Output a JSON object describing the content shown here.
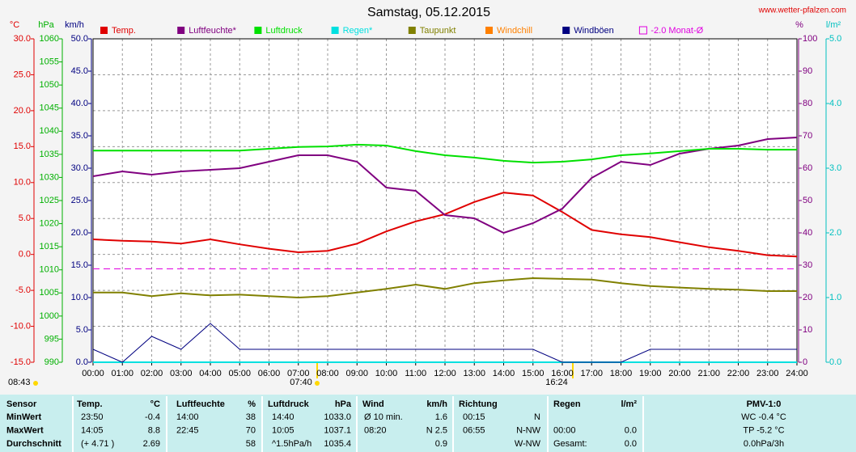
{
  "chart_data": {
    "type": "line",
    "title": "Samstag, 05.12.2015",
    "source": "www.wetter-pfalzen.com",
    "axis_units": {
      "y": "°C",
      "y2": "hPa",
      "y3": "km/h",
      "y4": "%",
      "y5": "l/m²"
    },
    "x": [
      0,
      1,
      2,
      3,
      4,
      5,
      6,
      7,
      8,
      9,
      10,
      11,
      12,
      13,
      14,
      15,
      16,
      17,
      18,
      19,
      20,
      21,
      22,
      23,
      24
    ],
    "xlim": [
      0,
      24
    ],
    "xticks": [
      {
        "value": 0,
        "label": "00:00"
      },
      {
        "value": 1,
        "label": "01:00"
      },
      {
        "value": 2,
        "label": "02:00"
      },
      {
        "value": 3,
        "label": "03:00"
      },
      {
        "value": 4,
        "label": "04:00"
      },
      {
        "value": 5,
        "label": "05:00"
      },
      {
        "value": 6,
        "label": "06:00"
      },
      {
        "value": 7,
        "label": "07:00"
      },
      {
        "value": 8,
        "label": "08:00"
      },
      {
        "value": 9,
        "label": "09:00"
      },
      {
        "value": 10,
        "label": "10:00"
      },
      {
        "value": 11,
        "label": "11:00"
      },
      {
        "value": 12,
        "label": "12:00"
      },
      {
        "value": 13,
        "label": "13:00"
      },
      {
        "value": 14,
        "label": "14:00"
      },
      {
        "value": 15,
        "label": "15:00"
      },
      {
        "value": 16,
        "label": "16:00"
      },
      {
        "value": 17,
        "label": "17:00"
      },
      {
        "value": 18,
        "label": "18:00"
      },
      {
        "value": 19,
        "label": "19:00"
      },
      {
        "value": 20,
        "label": "20:00"
      },
      {
        "value": 21,
        "label": "21:00"
      },
      {
        "value": 22,
        "label": "22:00"
      },
      {
        "value": 23,
        "label": "23:00"
      },
      {
        "value": 24,
        "label": "24:00"
      }
    ],
    "ylim": [
      -15,
      30
    ],
    "yticks": [
      {
        "value": 30,
        "label": "30.0"
      },
      {
        "value": 25,
        "label": "25.0"
      },
      {
        "value": 20,
        "label": "20.0"
      },
      {
        "value": 15,
        "label": "15.0"
      },
      {
        "value": 10,
        "label": "10.0"
      },
      {
        "value": 5,
        "label": "5.0"
      },
      {
        "value": 0,
        "label": "0.0"
      },
      {
        "value": -5,
        "label": "-5.0"
      },
      {
        "value": -10,
        "label": "-10.0"
      },
      {
        "value": -15,
        "label": "-15.0"
      }
    ],
    "y2lim": [
      990,
      1060
    ],
    "y2ticks": [
      1060,
      1055,
      1050,
      1045,
      1040,
      1035,
      1030,
      1025,
      1020,
      1015,
      1010,
      1005,
      1000,
      995,
      990
    ],
    "y3lim": [
      0,
      50
    ],
    "y3ticks": [
      {
        "value": 50,
        "label": "50.0"
      },
      {
        "value": 45,
        "label": "45.0"
      },
      {
        "value": 40,
        "label": "40.0"
      },
      {
        "value": 35,
        "label": "35.0"
      },
      {
        "value": 30,
        "label": "30.0"
      },
      {
        "value": 25,
        "label": "25.0"
      },
      {
        "value": 20,
        "label": "20.0"
      },
      {
        "value": 15,
        "label": "15.0"
      },
      {
        "value": 10,
        "label": "10.0"
      },
      {
        "value": 5,
        "label": "5.0"
      },
      {
        "value": 0,
        "label": "0.0"
      }
    ],
    "y4lim": [
      0,
      100
    ],
    "y4ticks": [
      100,
      90,
      80,
      70,
      60,
      50,
      40,
      30,
      20,
      10,
      0
    ],
    "y5lim": [
      0,
      5
    ],
    "y5ticks": [
      {
        "value": 5,
        "label": "5.0"
      },
      {
        "value": 4,
        "label": "4.0"
      },
      {
        "value": 3,
        "label": "3.0"
      },
      {
        "value": 2,
        "label": "2.0"
      },
      {
        "value": 1,
        "label": "1.0"
      },
      {
        "value": 0,
        "label": "0.0"
      }
    ],
    "grid": true,
    "series": [
      {
        "name": "Temp.",
        "color": "#e00000",
        "axis": "y",
        "values": [
          2.1,
          1.9,
          1.8,
          1.5,
          2.1,
          1.4,
          0.8,
          0.3,
          0.5,
          1.5,
          3.2,
          4.6,
          5.6,
          7.3,
          8.6,
          8.2,
          5.9,
          3.4,
          2.8,
          2.4,
          1.7,
          1.0,
          0.5,
          -0.1,
          -0.3
        ]
      },
      {
        "name": "Luftfeuchte*",
        "color": "#800080",
        "axis": "y4",
        "values": [
          57.5,
          59,
          58,
          59,
          59.5,
          60,
          62,
          64,
          64,
          62,
          54,
          53,
          45.5,
          44.5,
          40,
          43,
          47.5,
          57,
          62,
          61,
          64.5,
          66,
          67,
          69,
          69.5
        ]
      },
      {
        "name": "Luftdruck",
        "color": "#00e000",
        "axis": "y2",
        "values": [
          1035.8,
          1035.8,
          1035.8,
          1035.8,
          1035.8,
          1035.8,
          1036.2,
          1036.6,
          1036.7,
          1037.1,
          1036.9,
          1035.7,
          1034.8,
          1034.3,
          1033.6,
          1033.2,
          1033.4,
          1033.9,
          1034.8,
          1035.2,
          1035.7,
          1036.2,
          1036.2,
          1036.0,
          1036.0
        ]
      },
      {
        "name": "Regen*",
        "color": "#00e0e0",
        "axis": "y5",
        "values": [
          0,
          0,
          0,
          0,
          0,
          0,
          0,
          0,
          0,
          0,
          0,
          0,
          0,
          0,
          0,
          0,
          0,
          0,
          0,
          0,
          0,
          0,
          0,
          0,
          0
        ]
      },
      {
        "name": "Taupunkt",
        "color": "#808000",
        "axis": "y",
        "values": [
          -5.3,
          -5.3,
          -5.8,
          -5.4,
          -5.7,
          -5.6,
          -5.8,
          -6.0,
          -5.8,
          -5.3,
          -4.8,
          -4.2,
          -4.8,
          -4.0,
          -3.6,
          -3.3,
          -3.4,
          -3.5,
          -4.0,
          -4.4,
          -4.6,
          -4.8,
          -4.9,
          -5.1,
          -5.1
        ]
      },
      {
        "name": "Windchill",
        "color": "#ff8000",
        "axis": "y"
      },
      {
        "name": "Windböen",
        "color": "#000080",
        "axis": "y3",
        "values": [
          2,
          0,
          4,
          2,
          6,
          2,
          2,
          2,
          2,
          2,
          2,
          2,
          2,
          2,
          2,
          2,
          0,
          0,
          0,
          2,
          2,
          2,
          2,
          2,
          2
        ]
      },
      {
        "name": "-2.0 Monat-Ø",
        "color": "#e000e0",
        "axis": "y",
        "value": -2.0,
        "dashed": true
      }
    ],
    "annotations": [
      "08:43",
      "07:40",
      "16:24"
    ],
    "table": {
      "header": [
        "Sensor",
        "Temp.",
        "°C",
        "Luftfeuchte",
        "%",
        "Luftdruck",
        "hPa",
        "Wind",
        "km/h",
        "Richtung",
        "Regen",
        "l/m²",
        "PMV-1:0"
      ],
      "rows": [
        {
          "label": "MinWert",
          "cells": [
            "23:50",
            "-0.4",
            "14:00",
            "38",
            "14:40",
            "1033.0",
            "Ø 10 min.",
            "1.6",
            "00:15",
            "N",
            null,
            null,
            "WC -0.4 °C"
          ]
        },
        {
          "label": "MaxWert",
          "cells": [
            "14:05",
            "8.8",
            "22:45",
            "70",
            "10:05",
            "1037.1",
            "08:20",
            "N 2.5",
            "06:55",
            "N-NW",
            "00:00",
            "0.0",
            "TP -5.2 °C"
          ]
        },
        {
          "label": "Durchschnitt",
          "cells": [
            "(+ 4.71 )",
            "2.69",
            null,
            "58",
            "^1.5hPa/h",
            "1035.4",
            null,
            "0.9",
            null,
            "W-NW",
            "Gesamt:",
            "0.0",
            "0.0hPa/3h"
          ]
        }
      ]
    }
  }
}
